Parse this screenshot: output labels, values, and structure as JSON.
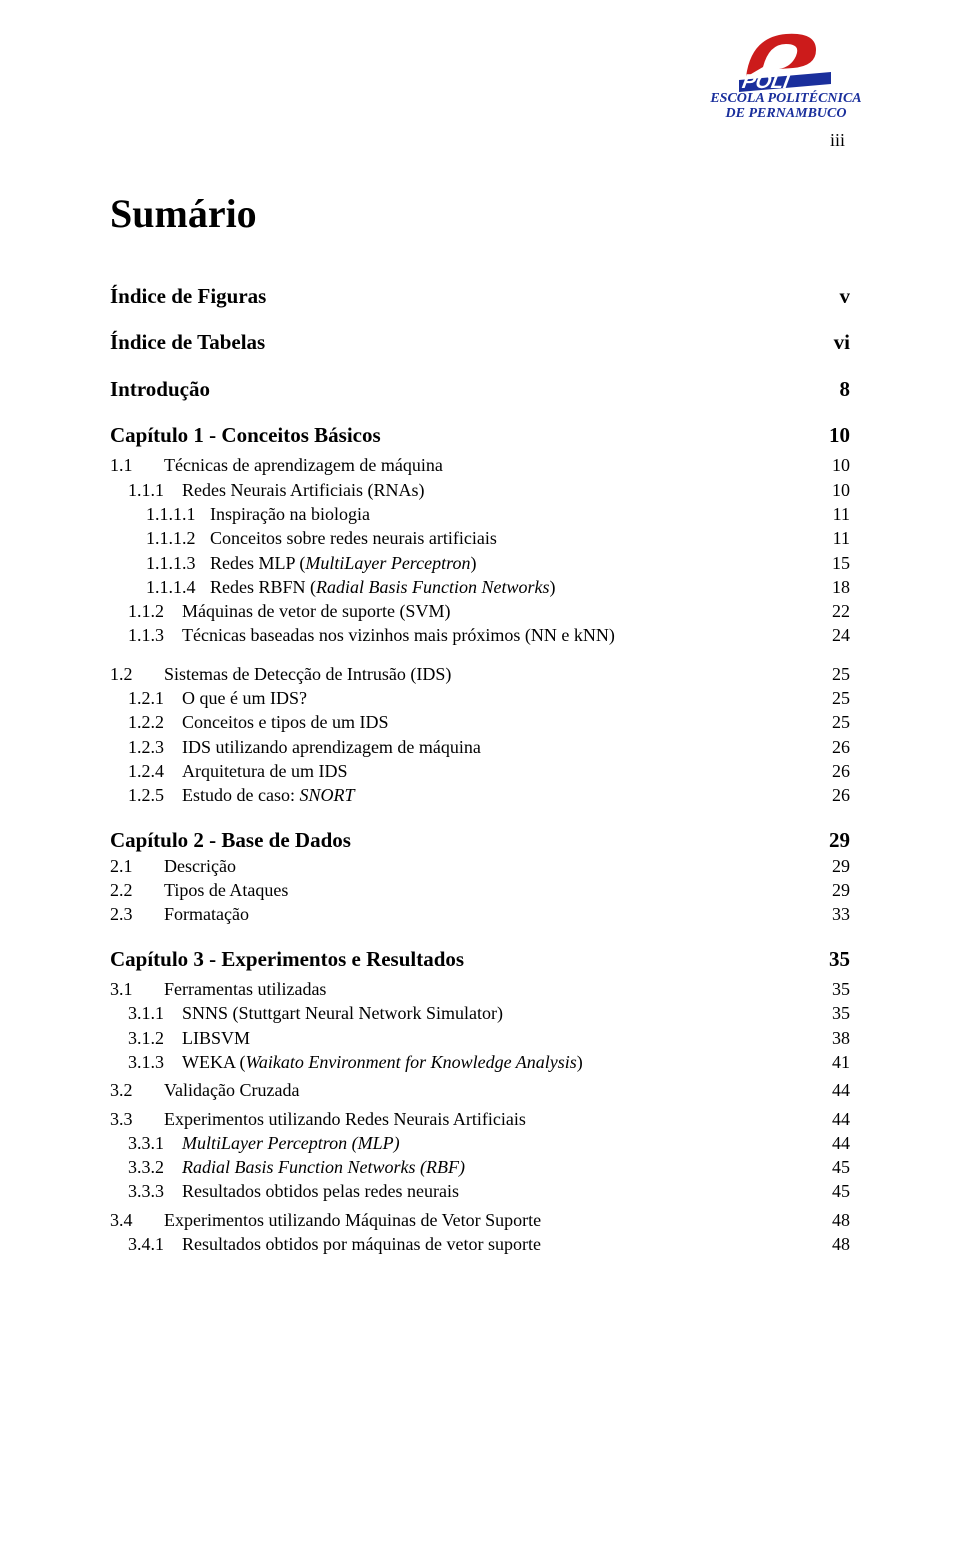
{
  "logo": {
    "line1": "ESCOLA POLITÉCNICA",
    "line2": "DE PERNAMBUCO",
    "colors": {
      "red": "#cc1b1b",
      "blue": "#1a2f9c",
      "white": "#ffffff"
    }
  },
  "page_roman": "iii",
  "title": "Sumário",
  "toc": [
    {
      "type": "heading",
      "label": "Índice de Figuras",
      "page": "v"
    },
    {
      "type": "heading",
      "label": "Índice de Tabelas",
      "page": "vi"
    },
    {
      "type": "heading",
      "label": "Introdução",
      "page": "8"
    },
    {
      "type": "heading",
      "label": "Capítulo 1 - Conceitos Básicos",
      "page": "10"
    },
    {
      "type": "l1",
      "num": "1.1",
      "label": "Técnicas de aprendizagem de máquina",
      "page": "10"
    },
    {
      "type": "l2",
      "num": "1.1.1",
      "label": "Redes Neurais Artificiais (RNAs)",
      "page": "10"
    },
    {
      "type": "l3",
      "num": "1.1.1.1",
      "label": "Inspiração na biologia",
      "page": "11"
    },
    {
      "type": "l3",
      "num": "1.1.1.2",
      "label": "Conceitos sobre redes neurais artificiais",
      "page": "11"
    },
    {
      "type": "l3",
      "num": "1.1.1.3",
      "label_html": "Redes MLP (<em class='ital'>MultiLayer Perceptron</em>)",
      "page": "15"
    },
    {
      "type": "l3",
      "num": "1.1.1.4",
      "label_html": "Redes RBFN (<em class='ital'>Radial Basis Function Networks</em>)",
      "page": "18"
    },
    {
      "type": "l2",
      "num": "1.1.2",
      "label": "Máquinas de vetor de suporte (SVM)",
      "page": "22"
    },
    {
      "type": "l2",
      "num": "1.1.3",
      "label": "Técnicas baseadas nos vizinhos mais próximos (NN e kNN)",
      "page": "24"
    },
    {
      "type": "l1sec",
      "num": "1.2",
      "label": "Sistemas de Detecção de Intrusão (IDS)",
      "page": "25"
    },
    {
      "type": "l2",
      "num": "1.2.1",
      "label": "O que é um IDS?",
      "page": "25"
    },
    {
      "type": "l2",
      "num": "1.2.2",
      "label": "Conceitos e tipos de um IDS",
      "page": "25"
    },
    {
      "type": "l2",
      "num": "1.2.3",
      "label": "IDS utilizando aprendizagem de máquina",
      "page": "26"
    },
    {
      "type": "l2",
      "num": "1.2.4",
      "label": "Arquitetura de um IDS",
      "page": "26"
    },
    {
      "type": "l2",
      "num": "1.2.5",
      "label_html": "Estudo de caso: <em class='ital'>SNORT</em>",
      "page": "26"
    },
    {
      "type": "heading",
      "label": "Capítulo 2 - Base de Dados",
      "page": "29"
    },
    {
      "type": "l1",
      "num": "2.1",
      "label": "Descrição",
      "page": "29",
      "nomargin": true
    },
    {
      "type": "l1",
      "num": "2.2",
      "label": "Tipos de Ataques",
      "page": "29",
      "nomargin": true
    },
    {
      "type": "l1",
      "num": "2.3",
      "label": "Formatação",
      "page": "33",
      "nomargin": true
    },
    {
      "type": "heading",
      "label": "Capítulo 3 - Experimentos e Resultados",
      "page": "35"
    },
    {
      "type": "l1",
      "num": "3.1",
      "label": "Ferramentas utilizadas",
      "page": "35"
    },
    {
      "type": "l2",
      "num": "3.1.1",
      "label": "SNNS (Stuttgart Neural Network Simulator)",
      "page": "35"
    },
    {
      "type": "l2",
      "num": "3.1.2",
      "label": "LIBSVM",
      "page": "38"
    },
    {
      "type": "l2",
      "num": "3.1.3",
      "label_html": "WEKA (<em class='ital'>Waikato Environment for Knowledge Analysis</em>)",
      "page": "41"
    },
    {
      "type": "l1",
      "num": "3.2",
      "label": "Validação Cruzada",
      "page": "44"
    },
    {
      "type": "l1",
      "num": "3.3",
      "label": "Experimentos utilizando Redes Neurais Artificiais",
      "page": "44"
    },
    {
      "type": "l2",
      "num": "3.3.1",
      "label_html": "<em class='ital'>MultiLayer Perceptron (MLP)</em>",
      "page": "44"
    },
    {
      "type": "l2",
      "num": "3.3.2",
      "label_html": "<em class='ital'>Radial Basis Function Networks (RBF)</em>",
      "page": "45"
    },
    {
      "type": "l2",
      "num": "3.3.3",
      "label": "Resultados obtidos pelas redes neurais",
      "page": "45"
    },
    {
      "type": "l1",
      "num": "3.4",
      "label": "Experimentos utilizando Máquinas de Vetor Suporte",
      "page": "48"
    },
    {
      "type": "l2",
      "num": "3.4.1",
      "label": "Resultados obtidos por máquinas de vetor suporte",
      "page": "48"
    }
  ]
}
